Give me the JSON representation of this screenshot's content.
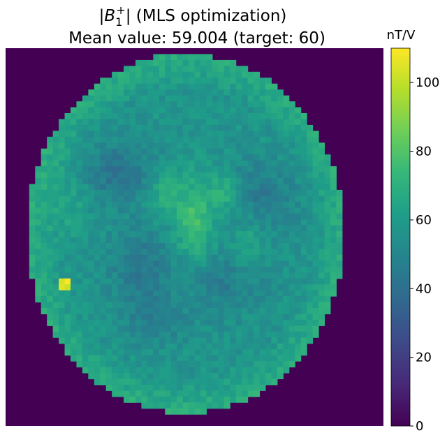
{
  "chart_data": {
    "type": "heatmap",
    "title_main": "|B1+| (MLS optimization)",
    "title_symbol": {
      "base": "B",
      "subscript": "1",
      "superscript": "+"
    },
    "title_suffix": " (MLS optimization)",
    "subtitle": "Mean value: 59.004 (target: 60)",
    "colorbar": {
      "label": "nT/V",
      "range": [
        0,
        110
      ],
      "ticks": [
        "0",
        "20",
        "40",
        "60",
        "80",
        "100"
      ],
      "colormap": "viridis"
    },
    "grid_size": [
      64,
      64
    ],
    "background_value": 0,
    "mean_value": 59.004,
    "target_value": 60,
    "colors": {
      "c0": "#440154",
      "c1": "#482878",
      "c2": "#3e4989",
      "c3": "#31688e",
      "c4": "#26828e",
      "c5": "#1f9e89",
      "c6": "#35b779",
      "c7": "#6ece58",
      "c8": "#b5de2b",
      "c9": "#fde725"
    },
    "features": [
      {
        "value": 57,
        "shape": "head-ellipse"
      },
      {
        "value": 48,
        "shape": "cool-patches"
      },
      {
        "value": 78,
        "shape": "central-y-structure"
      },
      {
        "value": 70,
        "shape": "ring-edge"
      },
      {
        "value": 105,
        "shape": "edge-hotspot-left"
      }
    ]
  }
}
